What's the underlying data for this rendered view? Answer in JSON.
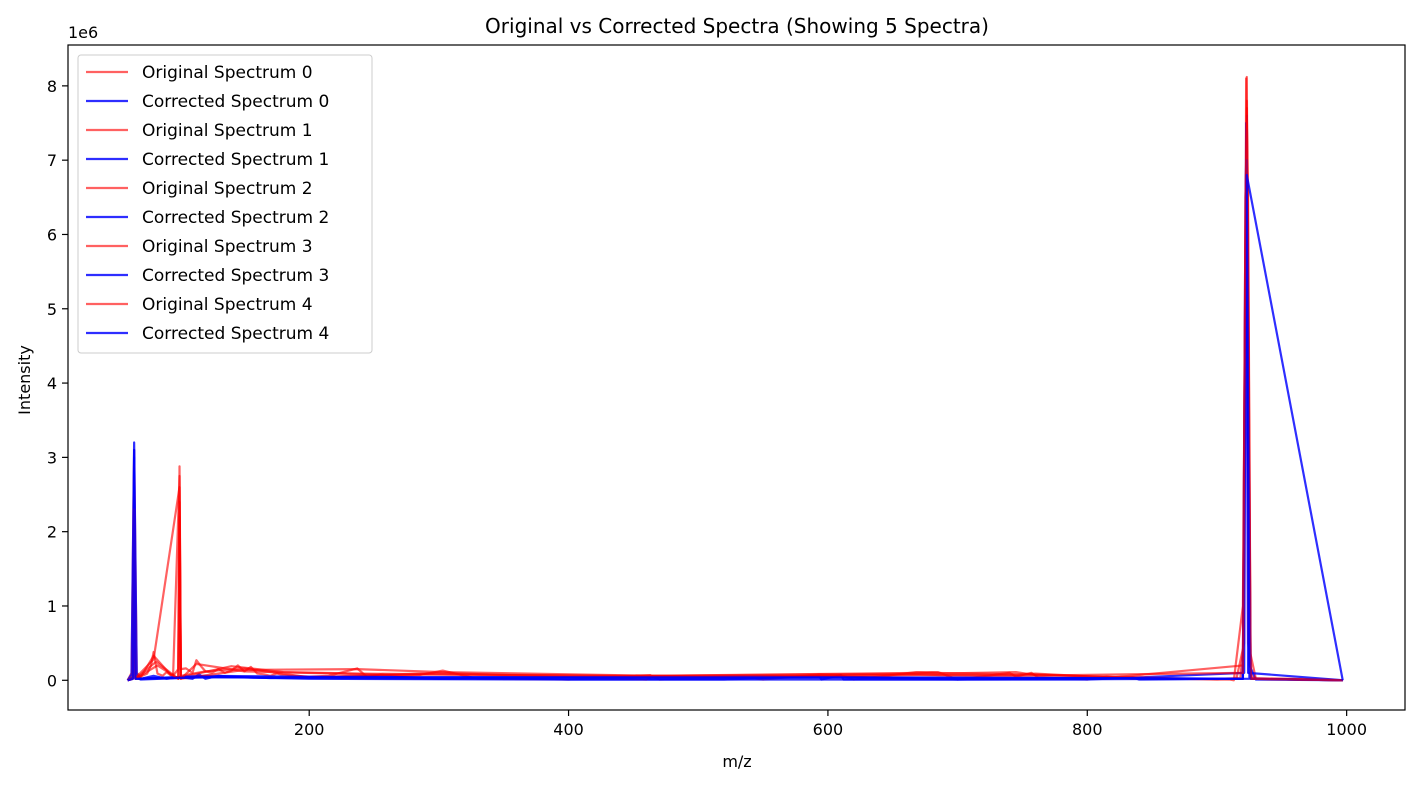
{
  "chart_data": {
    "type": "line",
    "title": "Original vs Corrected Spectra (Showing 5 Spectra)",
    "xlabel": "m/z",
    "ylabel": "Intensity",
    "y_offset_label": "1e6",
    "xlim": [
      14,
      1045
    ],
    "ylim": [
      -400000,
      8550000
    ],
    "x_ticks": [
      200,
      400,
      600,
      800,
      1000
    ],
    "x_tick_labels": [
      "200",
      "400",
      "600",
      "800",
      "1000"
    ],
    "y_ticks": [
      0,
      1000000,
      2000000,
      3000000,
      4000000,
      5000000,
      6000000,
      7000000,
      8000000
    ],
    "y_tick_labels": [
      "0",
      "1",
      "2",
      "3",
      "4",
      "5",
      "6",
      "7",
      "8"
    ],
    "grid": false,
    "legend_position": "top-left",
    "colors": {
      "original": "#ff0000",
      "corrected": "#0000ff"
    },
    "legend": [
      "Original Spectrum 0",
      "Corrected Spectrum 0",
      "Original Spectrum 1",
      "Corrected Spectrum 1",
      "Original Spectrum 2",
      "Corrected Spectrum 2",
      "Original Spectrum 3",
      "Corrected Spectrum 3",
      "Original Spectrum 4",
      "Corrected Spectrum 4"
    ],
    "series": [
      {
        "name": "Original Spectrum 0",
        "kind": "original",
        "x": [
          60,
          63,
          65,
          67,
          70,
          75,
          78,
          80,
          83,
          87,
          90,
          93,
          96,
          99,
          100,
          101,
          105,
          110,
          113,
          117,
          120,
          125,
          130,
          135,
          140,
          145,
          150,
          155,
          160,
          165,
          170,
          175,
          180,
          190,
          200,
          215,
          237,
          245,
          255,
          273,
          285,
          303,
          330,
          400,
          463,
          470,
          520,
          537,
          550,
          593,
          610,
          620,
          668,
          685,
          700,
          740,
          745,
          757,
          762,
          800,
          815,
          835,
          900,
          918,
          920,
          922,
          923,
          924,
          925,
          927,
          930,
          960,
          997
        ],
        "y": [
          0,
          100000,
          3100000,
          100000,
          50000,
          90000,
          200000,
          380000,
          90000,
          60000,
          110000,
          70000,
          80000,
          150000,
          2880000,
          150000,
          160000,
          100000,
          270000,
          180000,
          120000,
          100000,
          150000,
          100000,
          130000,
          200000,
          120000,
          180000,
          90000,
          80000,
          60000,
          90000,
          70000,
          60000,
          50000,
          60000,
          160000,
          40000,
          80000,
          60000,
          70000,
          130000,
          20000,
          10000,
          70000,
          10000,
          30000,
          40000,
          10000,
          80000,
          70000,
          10000,
          110000,
          110000,
          10000,
          100000,
          50000,
          100000,
          40000,
          10000,
          50000,
          20000,
          20000,
          30000,
          400000,
          5000000,
          7800000,
          5000000,
          300000,
          50000,
          20000,
          20000,
          0
        ]
      },
      {
        "name": "Corrected Spectrum 0",
        "kind": "corrected",
        "x": [
          60,
          63,
          65,
          67,
          70,
          80,
          90,
          100,
          110,
          115,
          120,
          130,
          150,
          170,
          250,
          300,
          340,
          400,
          450,
          520,
          593,
          595,
          610,
          612,
          700,
          835,
          840,
          920,
          923,
          925,
          930,
          997
        ],
        "y": [
          0,
          80000,
          3200000,
          80000,
          20000,
          60000,
          20000,
          40000,
          20000,
          80000,
          20000,
          60000,
          40000,
          30000,
          60000,
          20000,
          30000,
          10000,
          10000,
          10000,
          60000,
          10000,
          70000,
          10000,
          10000,
          40000,
          10000,
          20000,
          7600000,
          200000,
          10000,
          0
        ]
      },
      {
        "name": "Original Spectrum 1",
        "kind": "original",
        "x": [
          60,
          64,
          65,
          66,
          70,
          80,
          95,
          100,
          101,
          120,
          150,
          200,
          300,
          460,
          465,
          670,
          680,
          750,
          760,
          815,
          900,
          915,
          921,
          922.5,
          924,
          930,
          997
        ],
        "y": [
          0,
          50000,
          2900000,
          50000,
          40000,
          330000,
          40000,
          2750000,
          60000,
          120000,
          160000,
          40000,
          100000,
          10000,
          60000,
          90000,
          100000,
          80000,
          90000,
          40000,
          10000,
          20000,
          500000,
          8100000,
          500000,
          20000,
          0
        ]
      },
      {
        "name": "Corrected Spectrum 1",
        "kind": "corrected",
        "x": [
          60,
          64,
          65,
          66,
          70,
          100,
          120,
          200,
          400,
          600,
          800,
          921,
          922.5,
          924,
          997
        ],
        "y": [
          0,
          40000,
          3100000,
          40000,
          10000,
          30000,
          50000,
          20000,
          10000,
          10000,
          10000,
          100000,
          7500000,
          100000,
          0
        ]
      },
      {
        "name": "Original Spectrum 2",
        "kind": "original",
        "x": [
          60,
          64,
          65,
          66,
          80,
          100,
          101,
          140,
          180,
          240,
          300,
          460,
          670,
          685,
          745,
          760,
          910,
          913,
          920,
          923,
          926,
          997
        ],
        "y": [
          0,
          30000,
          2700000,
          30000,
          280000,
          2600000,
          40000,
          190000,
          110000,
          90000,
          80000,
          60000,
          100000,
          90000,
          110000,
          70000,
          10000,
          0,
          1000000,
          8120000,
          30000,
          0
        ]
      },
      {
        "name": "Corrected Spectrum 2",
        "kind": "corrected",
        "x": [
          60,
          64,
          65,
          66,
          120,
          250,
          593,
          610,
          700,
          920,
          922,
          923,
          924,
          926,
          997
        ],
        "y": [
          0,
          20000,
          3000000,
          20000,
          60000,
          40000,
          50000,
          50000,
          10000,
          20000,
          6500000,
          7400000,
          3000000,
          20000,
          0
        ]
      },
      {
        "name": "Original Spectrum 3",
        "kind": "original",
        "x": [
          60,
          64,
          65,
          66,
          82,
          99,
          100,
          101,
          150,
          237,
          303,
          537,
          668,
          686,
          742,
          758,
          820,
          920,
          922,
          923,
          924,
          926,
          997
        ],
        "y": [
          0,
          20000,
          2500000,
          20000,
          250000,
          20000,
          2400000,
          20000,
          140000,
          150000,
          110000,
          40000,
          80000,
          70000,
          70000,
          80000,
          40000,
          200000,
          6000000,
          7700000,
          6000000,
          20000,
          0
        ]
      },
      {
        "name": "Corrected Spectrum 3",
        "kind": "corrected",
        "x": [
          60,
          64,
          65,
          66,
          115,
          130,
          300,
          610,
          835,
          920,
          923,
          926,
          997
        ],
        "y": [
          0,
          20000,
          2800000,
          20000,
          50000,
          40000,
          20000,
          40000,
          30000,
          20000,
          7000000,
          20000,
          0
        ]
      },
      {
        "name": "Original Spectrum 4",
        "kind": "original",
        "x": [
          60,
          64,
          65,
          66,
          83,
          99,
          100,
          101,
          113,
          150,
          270,
          288,
          465,
          670,
          745,
          920,
          922,
          923,
          924,
          926,
          997
        ],
        "y": [
          0,
          20000,
          2300000,
          20000,
          200000,
          20000,
          2200000,
          20000,
          220000,
          120000,
          70000,
          80000,
          50000,
          70000,
          60000,
          100000,
          6500000,
          7500000,
          6500000,
          20000,
          0
        ]
      },
      {
        "name": "Corrected Spectrum 4",
        "kind": "corrected",
        "x": [
          60,
          64,
          65,
          66,
          130,
          250,
          593,
          925,
          923,
          997
        ],
        "y": [
          0,
          20000,
          2600000,
          20000,
          40000,
          40000,
          40000,
          20000,
          6800000,
          0
        ]
      }
    ]
  }
}
